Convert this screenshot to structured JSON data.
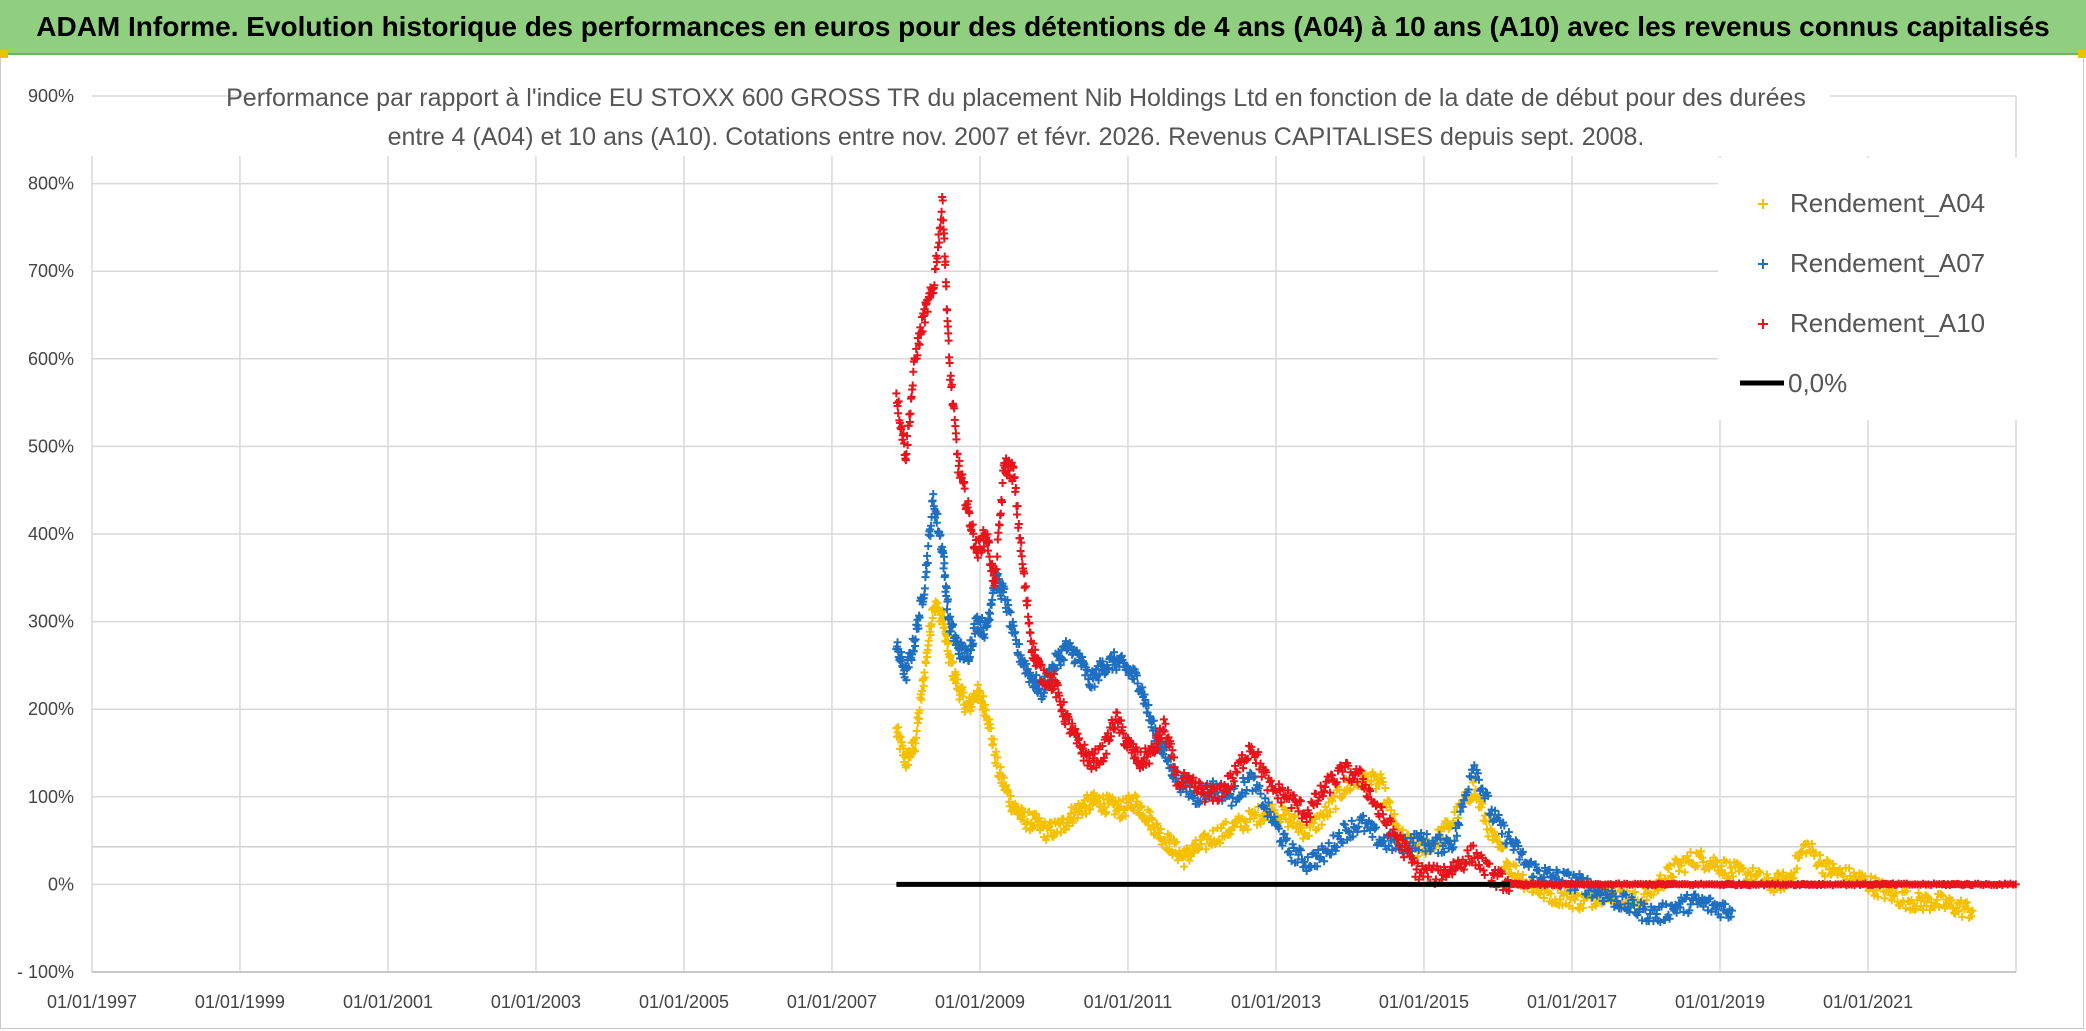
{
  "banner": {
    "title": "ADAM Informe. Evolution historique des performances en euros pour des détentions de 4 ans (A04) à 10 ans (A10) avec les revenus connus capitalisés"
  },
  "colors": {
    "banner_bg": "#8fcf7f",
    "a04": "#f5c000",
    "a07": "#1f6fc0",
    "a10": "#e8141c",
    "zero": "#000000"
  },
  "chart_data": {
    "type": "scatter",
    "title_lines": [
      "Performance par rapport à l'indice EU STOXX 600 GROSS TR  du placement Nib Holdings Ltd en fonction de la date de début pour des durées",
      "entre 4 (A04) et 10 ans (A10). Cotations entre nov. 2007 et févr. 2026. Revenus CAPITALISES depuis sept. 2008."
    ],
    "x_range": [
      "01/01/1997",
      "01/01/2023"
    ],
    "x_ticks": [
      "01/01/1997",
      "01/01/1999",
      "01/01/2001",
      "01/01/2003",
      "01/01/2005",
      "01/01/2007",
      "01/01/2009",
      "01/01/2011",
      "01/01/2013",
      "01/01/2015",
      "01/01/2017",
      "01/01/2019",
      "01/01/2021"
    ],
    "ylim": [
      -100,
      900
    ],
    "y_ticks": [
      "- 100%",
      "0%",
      "100%",
      "200%",
      "300%",
      "400%",
      "500%",
      "600%",
      "700%",
      "800%",
      "900%"
    ],
    "grid": true,
    "legend_position": "top-right",
    "series": [
      {
        "name": "Rendement_A04",
        "marker": "+",
        "color": "#f5c000",
        "points": [
          [
            "2007-11-15",
            175
          ],
          [
            "2008-01-01",
            140
          ],
          [
            "2008-02-15",
            160
          ],
          [
            "2008-04-01",
            240
          ],
          [
            "2008-05-15",
            320
          ],
          [
            "2008-07-01",
            305
          ],
          [
            "2008-08-01",
            260
          ],
          [
            "2008-09-15",
            225
          ],
          [
            "2008-11-01",
            200
          ],
          [
            "2008-12-15",
            220
          ],
          [
            "2009-02-01",
            200
          ],
          [
            "2009-04-01",
            130
          ],
          [
            "2009-06-01",
            95
          ],
          [
            "2009-08-01",
            75
          ],
          [
            "2009-10-01",
            70
          ],
          [
            "2009-12-01",
            60
          ],
          [
            "2010-02-01",
            65
          ],
          [
            "2010-04-01",
            80
          ],
          [
            "2010-06-01",
            90
          ],
          [
            "2010-08-01",
            95
          ],
          [
            "2010-10-01",
            90
          ],
          [
            "2010-12-01",
            85
          ],
          [
            "2011-02-01",
            95
          ],
          [
            "2011-04-01",
            80
          ],
          [
            "2011-06-01",
            60
          ],
          [
            "2011-08-01",
            45
          ],
          [
            "2011-10-01",
            30
          ],
          [
            "2011-12-01",
            40
          ],
          [
            "2012-03-01",
            55
          ],
          [
            "2012-06-01",
            65
          ],
          [
            "2012-09-01",
            75
          ],
          [
            "2012-12-01",
            85
          ],
          [
            "2013-03-01",
            75
          ],
          [
            "2013-06-01",
            60
          ],
          [
            "2013-09-01",
            80
          ],
          [
            "2013-12-01",
            110
          ],
          [
            "2014-03-01",
            120
          ],
          [
            "2014-06-01",
            115
          ],
          [
            "2014-09-01",
            55
          ],
          [
            "2014-12-01",
            40
          ],
          [
            "2015-03-01",
            50
          ],
          [
            "2015-06-01",
            75
          ],
          [
            "2015-09-01",
            110
          ],
          [
            "2015-12-01",
            55
          ],
          [
            "2016-03-01",
            20
          ],
          [
            "2016-06-01",
            0
          ],
          [
            "2016-09-01",
            -10
          ],
          [
            "2016-12-01",
            -15
          ],
          [
            "2017-03-01",
            -20
          ],
          [
            "2017-06-01",
            -10
          ],
          [
            "2017-09-01",
            -15
          ],
          [
            "2017-12-01",
            -20
          ],
          [
            "2018-03-01",
            0
          ],
          [
            "2018-06-01",
            20
          ],
          [
            "2018-09-01",
            30
          ],
          [
            "2018-12-01",
            25
          ],
          [
            "2019-03-01",
            15
          ],
          [
            "2019-06-01",
            10
          ],
          [
            "2019-09-01",
            0
          ],
          [
            "2019-12-01",
            5
          ],
          [
            "2020-03-01",
            45
          ],
          [
            "2020-06-01",
            20
          ],
          [
            "2020-09-01",
            10
          ],
          [
            "2020-12-01",
            5
          ],
          [
            "2021-03-01",
            -5
          ],
          [
            "2021-06-01",
            -15
          ],
          [
            "2021-09-01",
            -20
          ],
          [
            "2021-12-01",
            -20
          ],
          [
            "2022-03-01",
            -25
          ],
          [
            "2022-06-01",
            -30
          ]
        ]
      },
      {
        "name": "Rendement_A07",
        "marker": "+",
        "color": "#1f6fc0",
        "points": [
          [
            "2007-11-15",
            270
          ],
          [
            "2008-01-01",
            240
          ],
          [
            "2008-02-15",
            280
          ],
          [
            "2008-04-01",
            340
          ],
          [
            "2008-05-15",
            440
          ],
          [
            "2008-07-01",
            380
          ],
          [
            "2008-08-01",
            300
          ],
          [
            "2008-09-15",
            270
          ],
          [
            "2008-11-01",
            260
          ],
          [
            "2008-12-15",
            300
          ],
          [
            "2009-02-01",
            290
          ],
          [
            "2009-03-15",
            350
          ],
          [
            "2009-05-01",
            330
          ],
          [
            "2009-07-01",
            270
          ],
          [
            "2009-09-01",
            240
          ],
          [
            "2009-11-01",
            220
          ],
          [
            "2010-01-01",
            250
          ],
          [
            "2010-03-01",
            270
          ],
          [
            "2010-05-01",
            260
          ],
          [
            "2010-07-01",
            230
          ],
          [
            "2010-09-01",
            250
          ],
          [
            "2010-11-01",
            255
          ],
          [
            "2011-01-01",
            245
          ],
          [
            "2011-03-01",
            230
          ],
          [
            "2011-05-01",
            180
          ],
          [
            "2011-07-01",
            150
          ],
          [
            "2011-09-01",
            120
          ],
          [
            "2011-12-01",
            100
          ],
          [
            "2012-03-01",
            110
          ],
          [
            "2012-06-01",
            100
          ],
          [
            "2012-09-01",
            120
          ],
          [
            "2012-12-01",
            80
          ],
          [
            "2013-03-01",
            40
          ],
          [
            "2013-06-01",
            25
          ],
          [
            "2013-09-01",
            35
          ],
          [
            "2013-12-01",
            60
          ],
          [
            "2014-03-01",
            70
          ],
          [
            "2014-06-01",
            50
          ],
          [
            "2014-09-01",
            45
          ],
          [
            "2014-12-01",
            50
          ],
          [
            "2015-03-01",
            45
          ],
          [
            "2015-06-01",
            50
          ],
          [
            "2015-09-01",
            140
          ],
          [
            "2015-12-01",
            80
          ],
          [
            "2016-03-01",
            50
          ],
          [
            "2016-06-01",
            20
          ],
          [
            "2016-09-01",
            10
          ],
          [
            "2016-12-01",
            5
          ],
          [
            "2017-03-01",
            0
          ],
          [
            "2017-06-01",
            -10
          ],
          [
            "2017-09-01",
            -20
          ],
          [
            "2017-12-01",
            -30
          ],
          [
            "2018-03-01",
            -35
          ],
          [
            "2018-06-01",
            -25
          ],
          [
            "2018-09-01",
            -20
          ],
          [
            "2018-12-01",
            -25
          ],
          [
            "2019-03-01",
            -30
          ]
        ]
      },
      {
        "name": "Rendement_A10",
        "marker": "+",
        "color": "#e8141c",
        "points": [
          [
            "2007-11-15",
            560
          ],
          [
            "2008-01-01",
            490
          ],
          [
            "2008-02-15",
            600
          ],
          [
            "2008-04-01",
            650
          ],
          [
            "2008-05-15",
            680
          ],
          [
            "2008-07-01",
            780
          ],
          [
            "2008-08-01",
            600
          ],
          [
            "2008-09-15",
            480
          ],
          [
            "2008-11-01",
            430
          ],
          [
            "2008-12-15",
            380
          ],
          [
            "2009-02-01",
            400
          ],
          [
            "2009-03-15",
            340
          ],
          [
            "2009-05-01",
            480
          ],
          [
            "2009-06-15",
            470
          ],
          [
            "2009-08-01",
            360
          ],
          [
            "2009-09-15",
            270
          ],
          [
            "2009-11-01",
            240
          ],
          [
            "2010-01-01",
            230
          ],
          [
            "2010-03-01",
            190
          ],
          [
            "2010-05-01",
            160
          ],
          [
            "2010-07-01",
            140
          ],
          [
            "2010-09-01",
            150
          ],
          [
            "2010-11-01",
            190
          ],
          [
            "2011-01-01",
            160
          ],
          [
            "2011-03-01",
            140
          ],
          [
            "2011-05-01",
            150
          ],
          [
            "2011-07-01",
            180
          ],
          [
            "2011-09-01",
            120
          ],
          [
            "2011-12-01",
            110
          ],
          [
            "2012-03-01",
            100
          ],
          [
            "2012-06-01",
            120
          ],
          [
            "2012-09-01",
            160
          ],
          [
            "2012-12-01",
            110
          ],
          [
            "2013-03-01",
            100
          ],
          [
            "2013-06-01",
            80
          ],
          [
            "2013-09-01",
            110
          ],
          [
            "2013-12-01",
            130
          ],
          [
            "2014-03-01",
            120
          ],
          [
            "2014-06-01",
            80
          ],
          [
            "2014-09-01",
            50
          ],
          [
            "2014-12-01",
            15
          ],
          [
            "2015-03-01",
            10
          ],
          [
            "2015-06-01",
            20
          ],
          [
            "2015-09-01",
            35
          ],
          [
            "2015-12-01",
            10
          ],
          [
            "2016-03-01",
            0
          ],
          [
            "2016-06-01",
            0
          ],
          [
            "2016-12-01",
            0
          ],
          [
            "2017-06-01",
            0
          ],
          [
            "2018-01-01",
            0
          ],
          [
            "2018-06-01",
            0
          ],
          [
            "2019-01-01",
            0
          ],
          [
            "2019-06-01",
            0
          ],
          [
            "2020-01-01",
            0
          ],
          [
            "2020-06-01",
            0
          ],
          [
            "2021-01-01",
            0
          ],
          [
            "2021-06-01",
            0
          ],
          [
            "2022-01-01",
            0
          ],
          [
            "2022-06-01",
            0
          ],
          [
            "2022-12-31",
            0
          ]
        ]
      }
    ],
    "reference_line": {
      "name": "0,0%",
      "y": 0,
      "x_start": "2007-11-15",
      "x_end": "2022-12-31",
      "color": "#000000"
    }
  }
}
